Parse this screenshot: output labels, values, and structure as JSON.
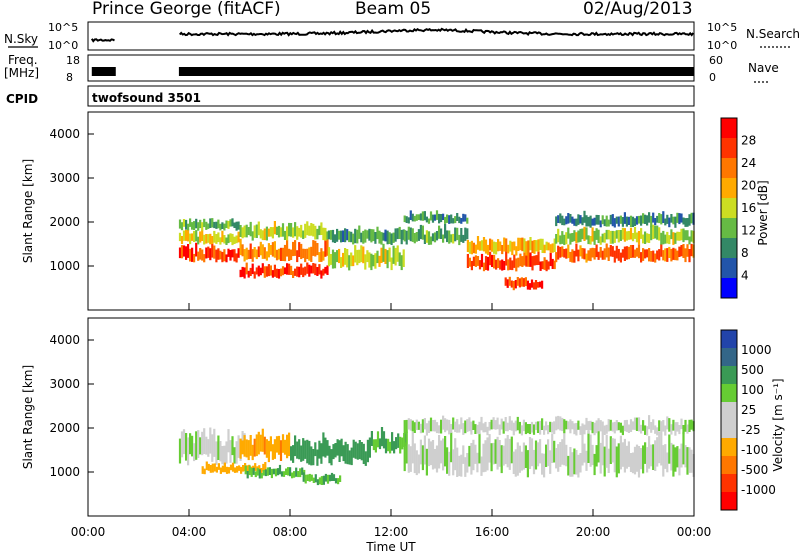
{
  "header": {
    "station": "Prince George (fitACF)",
    "beam": "Beam 05",
    "date": "02/Aug/2013"
  },
  "top_strips": {
    "nsky_label": "N.Sky",
    "nsky_ticks": [
      "10^5",
      "10^0"
    ],
    "nsearch_label": "N.Search",
    "nsearch_ticks": [
      "10^5",
      "10^0"
    ],
    "freq_label": "Freq.",
    "freq_unit": "[MHz]",
    "freq_ticks": [
      "18",
      "8"
    ],
    "nave_label": "Nave",
    "nave_ticks": [
      "60",
      "0"
    ],
    "cpid_label": "CPID",
    "cpid_value": "twofsound 3501"
  },
  "x_axis": {
    "label": "Time UT",
    "ticks": [
      "00:00",
      "04:00",
      "08:00",
      "12:00",
      "16:00",
      "20:00",
      "00:00"
    ]
  },
  "y_axis": {
    "label": "Slant Range [km]",
    "ticks": [
      "4000",
      "3000",
      "2000",
      "1000"
    ]
  },
  "power_scale": {
    "label": "Power [dB]",
    "ticks": [
      "28",
      "24",
      "20",
      "16",
      "12",
      "8",
      "4"
    ],
    "colors": [
      "#ff0000",
      "#ff3300",
      "#ff7700",
      "#ffaa00",
      "#ccdd22",
      "#66bb44",
      "#338866",
      "#2255aa",
      "#0000ff"
    ]
  },
  "velocity_scale": {
    "label": "Velocity [m s⁻¹]",
    "ticks": [
      "1000",
      "500",
      "100",
      "25",
      "-25",
      "-100",
      "-500",
      "-1000"
    ],
    "colors": [
      "#2244aa",
      "#336688",
      "#3a9a55",
      "#66cc33",
      "#cfcfcf",
      "#cfcfcf",
      "#ffaa00",
      "#ff7700",
      "#ff3300",
      "#ff0000"
    ]
  },
  "chart_data": [
    {
      "type": "heatmap",
      "name": "power",
      "x_unit": "hours UT",
      "x_range": [
        0,
        24
      ],
      "y_unit": "km",
      "y_range": [
        0,
        4500
      ],
      "z_range": [
        0,
        30
      ],
      "blobs": [
        {
          "t0": 3.6,
          "t1": 6.0,
          "r": 1300,
          "h": 300,
          "z": 26
        },
        {
          "t0": 3.6,
          "t1": 6.0,
          "r": 1650,
          "h": 250,
          "z": 16
        },
        {
          "t0": 3.6,
          "t1": 6.0,
          "r": 1950,
          "h": 200,
          "z": 10
        },
        {
          "t0": 6.0,
          "t1": 9.5,
          "r": 900,
          "h": 250,
          "z": 27
        },
        {
          "t0": 6.0,
          "t1": 9.5,
          "r": 1350,
          "h": 350,
          "z": 22
        },
        {
          "t0": 6.0,
          "t1": 9.5,
          "r": 1800,
          "h": 300,
          "z": 14
        },
        {
          "t0": 9.5,
          "t1": 12.5,
          "r": 1200,
          "h": 400,
          "z": 14
        },
        {
          "t0": 9.5,
          "t1": 12.5,
          "r": 1700,
          "h": 300,
          "z": 9
        },
        {
          "t0": 12.5,
          "t1": 15.0,
          "r": 1700,
          "h": 300,
          "z": 10
        },
        {
          "t0": 12.5,
          "t1": 15.0,
          "r": 2100,
          "h": 200,
          "z": 8
        },
        {
          "t0": 15.0,
          "t1": 18.5,
          "r": 1100,
          "h": 300,
          "z": 26
        },
        {
          "t0": 15.0,
          "t1": 18.5,
          "r": 1450,
          "h": 300,
          "z": 18
        },
        {
          "t0": 16.5,
          "t1": 18.0,
          "r": 600,
          "h": 200,
          "z": 27
        },
        {
          "t0": 18.5,
          "t1": 24.0,
          "r": 1300,
          "h": 300,
          "z": 24
        },
        {
          "t0": 18.5,
          "t1": 24.0,
          "r": 1700,
          "h": 300,
          "z": 14
        },
        {
          "t0": 18.5,
          "t1": 24.0,
          "r": 2050,
          "h": 250,
          "z": 7
        }
      ]
    },
    {
      "type": "heatmap",
      "name": "velocity",
      "x_unit": "hours UT",
      "x_range": [
        0,
        24
      ],
      "y_unit": "km",
      "y_range": [
        0,
        4500
      ],
      "z_range": [
        -1000,
        1000
      ],
      "blobs": [
        {
          "t0": 3.6,
          "t1": 6.2,
          "r": 1600,
          "h": 600,
          "z": 0
        },
        {
          "t0": 4.5,
          "t1": 7.0,
          "r": 1100,
          "h": 200,
          "z": -400
        },
        {
          "t0": 6.0,
          "t1": 8.0,
          "r": 1600,
          "h": 500,
          "z": -450
        },
        {
          "t0": 6.2,
          "t1": 8.6,
          "r": 1000,
          "h": 200,
          "z": 90
        },
        {
          "t0": 8.0,
          "t1": 11.2,
          "r": 1500,
          "h": 500,
          "z": 300
        },
        {
          "t0": 8.5,
          "t1": 10.0,
          "r": 850,
          "h": 200,
          "z": 90
        },
        {
          "t0": 11.2,
          "t1": 12.6,
          "r": 1700,
          "h": 400,
          "z": 120
        },
        {
          "t0": 12.5,
          "t1": 24.0,
          "r": 1400,
          "h": 700,
          "z": 0
        },
        {
          "t0": 12.5,
          "t1": 24.0,
          "r": 2050,
          "h": 300,
          "z": 0
        }
      ]
    }
  ]
}
